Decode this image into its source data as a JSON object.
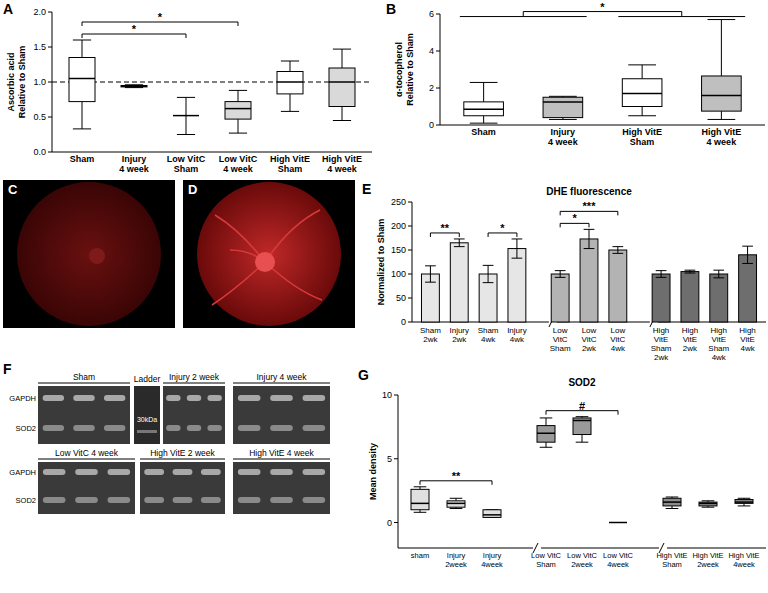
{
  "chart_data": [
    {
      "panel": "A",
      "type": "box",
      "y_label": "Ascorbic acid\nRelative to Sham",
      "categories": [
        "Sham",
        "Injury\n4 week",
        "Low VitC\nSham",
        "Low VitC\n4 week",
        "High VitE\nSham",
        "High VitE\n4 week"
      ],
      "min": [
        0.33,
        0.92,
        0.25,
        0.27,
        0.58,
        0.45
      ],
      "q1": [
        0.72,
        0.93,
        0.52,
        0.47,
        0.83,
        0.65
      ],
      "median": [
        1.05,
        0.94,
        0.52,
        0.62,
        1.0,
        1.0
      ],
      "q3": [
        1.35,
        0.95,
        0.52,
        0.72,
        1.15,
        1.2
      ],
      "max": [
        1.6,
        0.96,
        0.78,
        0.88,
        1.3,
        1.47
      ],
      "colors": [
        "#ffffff",
        "#d9d9d9",
        "#ffffff",
        "#d9d9d9",
        "#ffffff",
        "#d9d9d9"
      ],
      "ylim": [
        0,
        2
      ],
      "yticks": [
        {
          "value": 0,
          "label": "0.0"
        },
        0.5,
        {
          "value": 1,
          "label": "1.0"
        },
        1.5,
        {
          "value": 2,
          "label": "2.0"
        }
      ],
      "reference_line": 1,
      "annotations": [
        {
          "from": [
            "Sham"
          ],
          "to": [
            "Low VitC\nSham"
          ],
          "label": "*"
        },
        {
          "from": [
            "Sham"
          ],
          "to": [
            "Low VitC\n4 week"
          ],
          "label": "*"
        }
      ]
    },
    {
      "panel": "B",
      "type": "box",
      "y_label": "α-tocopherol\nRelative to Sham",
      "categories": [
        "Sham",
        "Injury\n4 week",
        "High VitE\nSham",
        "High VitE\n4 week"
      ],
      "min": [
        0.1,
        0.3,
        0.5,
        0.3
      ],
      "q1": [
        0.5,
        0.4,
        1.0,
        0.75
      ],
      "median": [
        0.85,
        1.25,
        1.7,
        1.6
      ],
      "q3": [
        1.25,
        1.5,
        2.5,
        2.65
      ],
      "max": [
        2.3,
        1.55,
        3.25,
        5.7
      ],
      "colors": [
        "#ffffff",
        "#bfbfbf",
        "#ffffff",
        "#bfbfbf"
      ],
      "ylim": [
        0,
        6
      ],
      "yticks": [
        0,
        2,
        4,
        6
      ],
      "annotations": [
        {
          "from": [
            "Sham",
            "Injury\n4 week"
          ],
          "to": [
            "High VitE\nSham",
            "High VitE\n4 week"
          ],
          "label": "*"
        }
      ]
    },
    {
      "panel": "E",
      "type": "bar",
      "title": "DHE fluorescence",
      "y_label": "Normalized to Sham",
      "categories": [
        "Sham\n2wk",
        "Injury\n2wk",
        "Sham\n4wk",
        "Injury\n4wk",
        "Low\nVitC\nSham",
        "Low\nVitC\n2wk",
        "Low\nVitC\n4wk",
        "High\nVitE\nSham\n2wk",
        "High\nVitE\n2wk",
        "High\nVitE\nSham\n4wk",
        "High\nVitE\n4wk"
      ],
      "values": [
        100,
        165,
        100,
        153,
        100,
        173,
        150,
        100,
        105,
        100,
        140
      ],
      "errors": [
        17,
        8,
        18,
        20,
        7,
        20,
        7,
        7,
        3,
        8,
        18
      ],
      "colors": [
        "#e6e6e6",
        "#e6e6e6",
        "#e6e6e6",
        "#e6e6e6",
        "#b3b3b3",
        "#b3b3b3",
        "#b3b3b3",
        "#6e6e6e",
        "#6e6e6e",
        "#6e6e6e",
        "#6e6e6e"
      ],
      "ylim": [
        0,
        250
      ],
      "yticks": [
        0,
        50,
        100,
        150,
        200,
        250
      ],
      "annotations": [
        {
          "from": [
            "Sham\n2wk"
          ],
          "to": [
            "Injury\n2wk"
          ],
          "label": "**"
        },
        {
          "from": [
            "Sham\n4wk"
          ],
          "to": [
            "Injury\n4wk"
          ],
          "label": "*"
        },
        {
          "from": [
            "Low\nVitC\nSham"
          ],
          "to": [
            "Low\nVitC\n2wk"
          ],
          "label": "*"
        },
        {
          "from": [
            "Low\nVitC\nSham"
          ],
          "to": [
            "Low\nVitC\n4wk"
          ],
          "label": "***"
        }
      ]
    },
    {
      "panel": "G",
      "type": "box",
      "title": "SOD2",
      "y_label": "Mean density",
      "categories": [
        "sham",
        "Injury\n2week",
        "Injury\n4week",
        "Low VitC\nSham",
        "Low VitC\n2week",
        "Low VitC\n4week",
        "High VitE\nSham",
        "High VitE\n2week",
        "High VitE\n4week"
      ],
      "min": [
        0.8,
        1.1,
        0.4,
        5.9,
        6.3,
        0,
        1.1,
        1.2,
        1.3
      ],
      "q1": [
        1.0,
        1.2,
        0.4,
        6.3,
        6.9,
        0,
        1.3,
        1.3,
        1.5
      ],
      "median": [
        1.5,
        1.5,
        0.6,
        7.0,
        8.0,
        0,
        1.6,
        1.5,
        1.6
      ],
      "q3": [
        2.6,
        1.7,
        1.0,
        7.6,
        8.2,
        0,
        1.9,
        1.6,
        1.8
      ],
      "max": [
        2.8,
        1.9,
        1.0,
        8.2,
        8.3,
        0,
        2.0,
        1.7,
        1.9
      ],
      "colors": [
        "#e0e0e0",
        "#e0e0e0",
        "#e0e0e0",
        "#9a9a9a",
        "#9a9a9a",
        "#9a9a9a",
        "#8c8c8c",
        "#8c8c8c",
        "#8c8c8c"
      ],
      "ylim": [
        -2,
        10
      ],
      "yticks": [
        0,
        5,
        10
      ],
      "annotations": [
        {
          "from": [
            "sham"
          ],
          "to": [
            "Injury\n4week"
          ],
          "label": "**"
        },
        {
          "from": [
            "Low VitC\nSham"
          ],
          "to": [
            "Low VitC\n4week"
          ],
          "label": "#"
        }
      ]
    }
  ],
  "image_panels": {
    "C": {
      "label": "C"
    },
    "D": {
      "label": "D"
    },
    "F": {
      "label": "F",
      "rows": [
        "GAPDH",
        "SOD2"
      ],
      "ladder": "Ladder",
      "ladder_size": "30kDa",
      "blots": [
        "Sham",
        "Injury 2 week",
        "Injury 4 week",
        "Low VitC 4 week",
        "High VitE 2 week",
        "High VitE 4 week"
      ]
    }
  }
}
